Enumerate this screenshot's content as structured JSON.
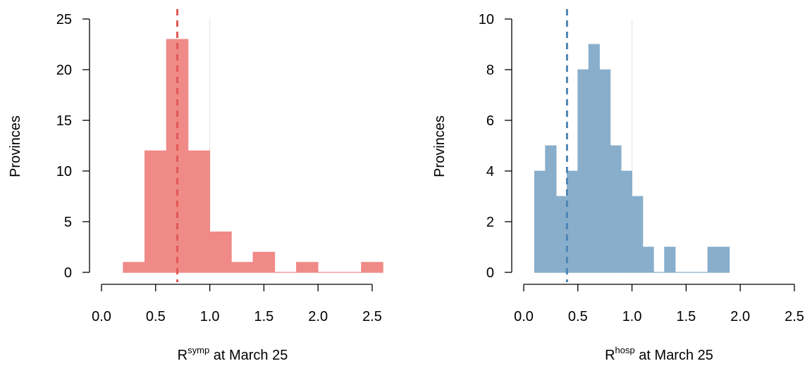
{
  "chart_data": [
    {
      "type": "histogram",
      "xlabel_base": "R",
      "xlabel_sup": "symp",
      "xlabel_rest": " at March 25",
      "ylabel": "Provinces",
      "xlim": [
        0,
        2.6
      ],
      "ylim": [
        0,
        25
      ],
      "x_ticks": [
        "0.0",
        "0.5",
        "1.0",
        "1.5",
        "2.0",
        "2.5"
      ],
      "y_ticks": [
        "0",
        "5",
        "10",
        "15",
        "20",
        "25"
      ],
      "bin_edges": [
        0.2,
        0.4,
        0.6,
        0.8,
        1.0,
        1.2,
        1.4,
        1.6,
        1.8,
        2.0,
        2.2,
        2.4,
        2.6
      ],
      "counts": [
        1,
        12,
        23,
        12,
        4,
        1,
        2,
        0,
        1,
        0,
        0,
        1
      ],
      "bar_color": "#f08a87",
      "dashed_line_x": 0.7,
      "dashed_line_color": "#e05a55",
      "ref_line_x": 1.0,
      "grid": false
    },
    {
      "type": "histogram",
      "xlabel_base": "R",
      "xlabel_sup": "hosp",
      "xlabel_rest": " at March 25",
      "ylabel": "Provinces",
      "xlim": [
        0,
        2.5
      ],
      "ylim": [
        0,
        10
      ],
      "x_ticks": [
        "0.0",
        "0.5",
        "1.0",
        "1.5",
        "2.0",
        "2.5"
      ],
      "y_ticks": [
        "0",
        "2",
        "4",
        "6",
        "8",
        "10"
      ],
      "bin_edges": [
        0.1,
        0.2,
        0.3,
        0.4,
        0.5,
        0.6,
        0.7,
        0.8,
        0.9,
        1.0,
        1.1,
        1.2,
        1.3,
        1.4,
        1.5,
        1.6,
        1.7,
        1.8,
        1.9
      ],
      "counts": [
        4,
        5,
        3,
        4,
        8,
        9,
        8,
        5,
        4,
        3,
        1,
        0,
        1,
        0,
        0,
        0,
        1,
        1
      ],
      "bar_color": "#88aecb",
      "dashed_line_x": 0.4,
      "dashed_line_color": "#4f86b5",
      "ref_line_x": 1.0,
      "grid": false
    }
  ]
}
